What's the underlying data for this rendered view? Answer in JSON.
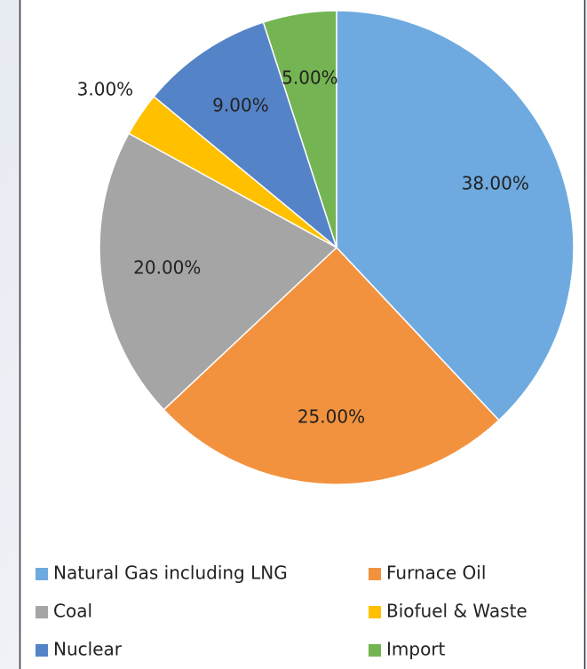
{
  "chart_data": {
    "type": "pie",
    "categories": [
      "Natural Gas including LNG",
      "Furnace Oil",
      "Coal",
      "Biofuel & Waste",
      "Nuclear",
      "Import"
    ],
    "values": [
      38,
      25,
      20,
      3,
      9,
      5
    ],
    "value_labels": [
      "38.00%",
      "25.00%",
      "20.00%",
      "3.00%",
      "9.00%",
      "5.00%"
    ],
    "colors": [
      "#6eaadf",
      "#f2923e",
      "#a5a5a5",
      "#ffc000",
      "#5583c8",
      "#74b452"
    ],
    "legend": "bottom"
  }
}
